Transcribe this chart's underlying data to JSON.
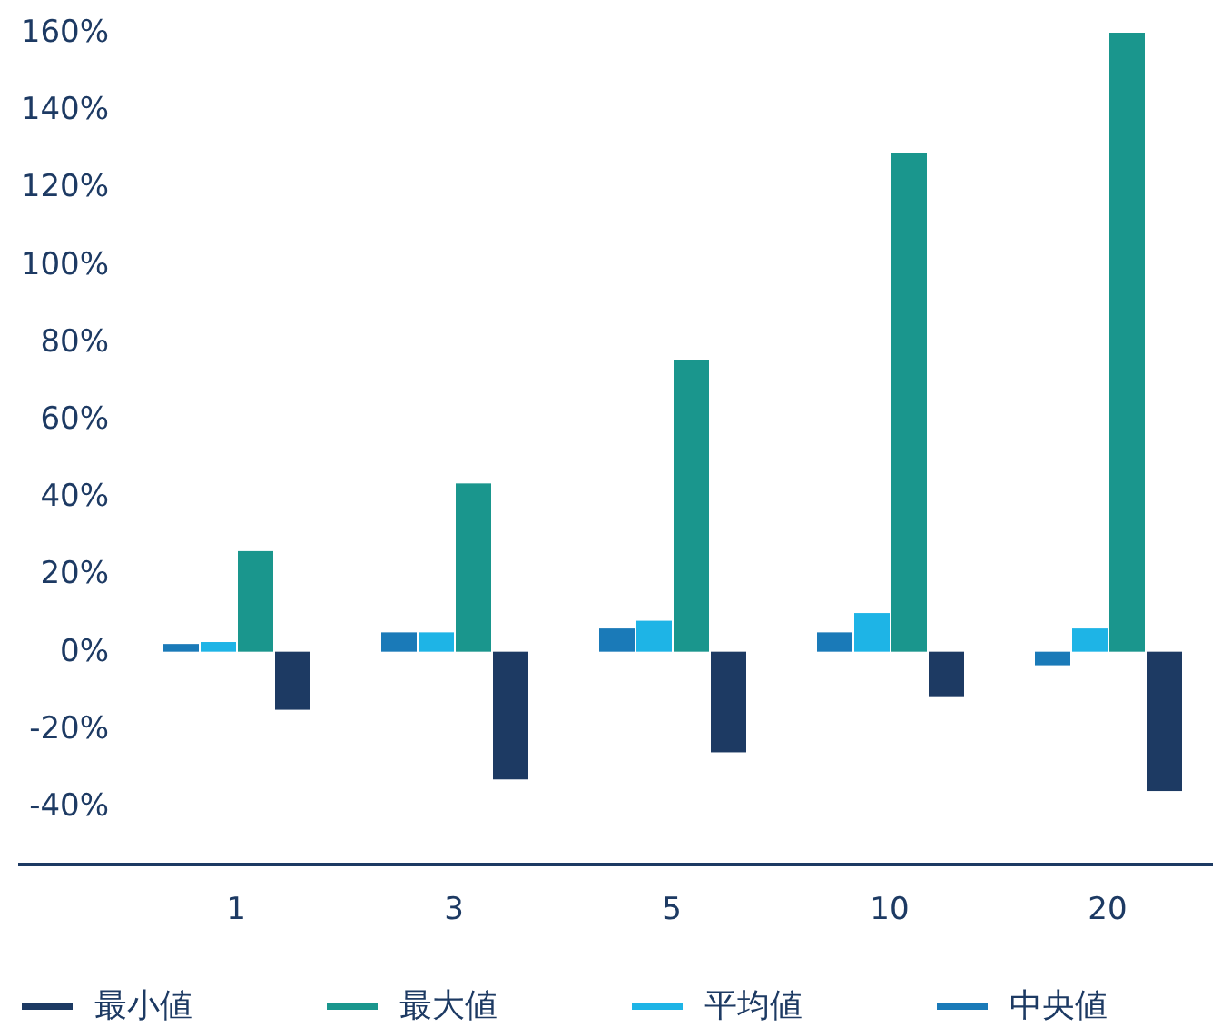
{
  "chart_data": {
    "type": "bar",
    "categories": [
      "1",
      "3",
      "5",
      "10",
      "20"
    ],
    "series": [
      {
        "name": "中央値",
        "color": "#1a7ab8",
        "values": [
          2,
          5,
          6,
          5,
          -3.5
        ]
      },
      {
        "name": "平均値",
        "color": "#1eb4e6",
        "values": [
          2.5,
          5,
          8,
          10,
          6
        ]
      },
      {
        "name": "最大値",
        "color": "#1a968d",
        "values": [
          26,
          43.5,
          75.5,
          129,
          160
        ]
      },
      {
        "name": "最小値",
        "color": "#1d3a63",
        "values": [
          -15,
          -33,
          -26,
          -11.5,
          -36
        ]
      }
    ],
    "ylim": [
      -55,
      160
    ],
    "yticks": [
      {
        "value": -40,
        "label": "-40%"
      },
      {
        "value": -20,
        "label": "-20%"
      },
      {
        "value": 0,
        "label": "0%"
      },
      {
        "value": 20,
        "label": "20%"
      },
      {
        "value": 40,
        "label": "40%"
      },
      {
        "value": 60,
        "label": "60%"
      },
      {
        "value": 80,
        "label": "80%"
      },
      {
        "value": 100,
        "label": "100%"
      },
      {
        "value": 120,
        "label": "120%"
      },
      {
        "value": 140,
        "label": "140%"
      },
      {
        "value": 160,
        "label": "160%"
      }
    ],
    "grid": false,
    "legend": "bottom"
  }
}
